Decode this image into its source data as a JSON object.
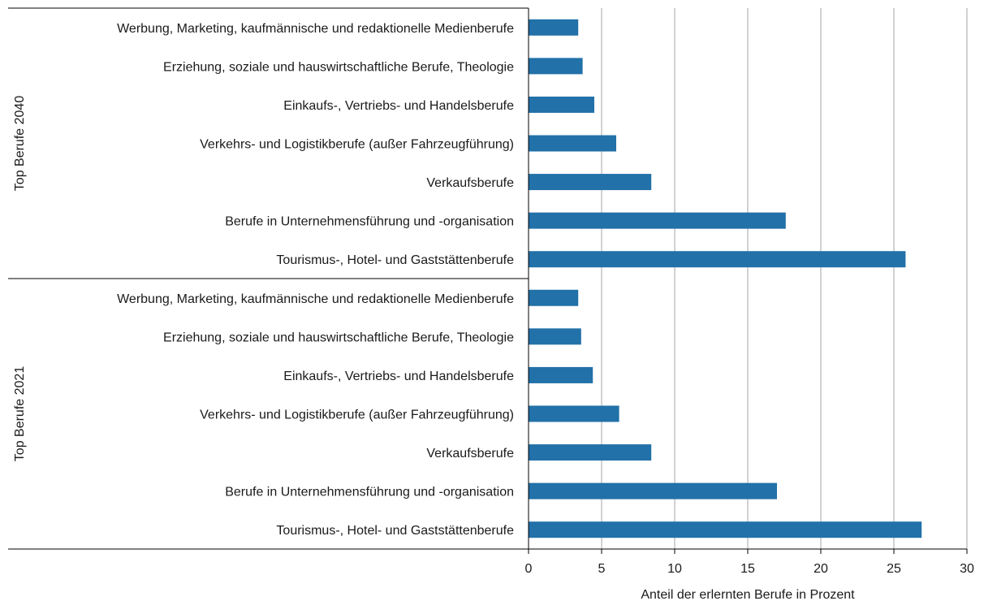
{
  "chart_data": {
    "type": "bar",
    "orientation": "horizontal",
    "groups": [
      {
        "label": "Top Berufe 2040",
        "categories": [
          "Werbung, Marketing, kaufmännische und redaktionelle Medienberufe",
          "Erziehung, soziale und hauswirtschaftliche Berufe, Theologie",
          "Einkaufs-, Vertriebs- und Handelsberufe",
          "Verkehrs- und Logistikberufe (außer Fahrzeugführung)",
          "Verkaufsberufe",
          "Berufe in Unternehmensführung und -organisation",
          "Tourismus-, Hotel- und Gaststättenberufe"
        ],
        "values": [
          3.4,
          3.7,
          4.5,
          6.0,
          8.4,
          17.6,
          25.8
        ]
      },
      {
        "label": "Top Berufe 2021",
        "categories": [
          "Werbung, Marketing, kaufmännische und redaktionelle Medienberufe",
          "Erziehung, soziale und hauswirtschaftliche Berufe, Theologie",
          "Einkaufs-, Vertriebs- und Handelsberufe",
          "Verkehrs- und Logistikberufe (außer Fahrzeugführung)",
          "Verkaufsberufe",
          "Berufe in Unternehmensführung und -organisation",
          "Tourismus-, Hotel- und Gaststättenberufe"
        ],
        "values": [
          3.4,
          3.6,
          4.4,
          6.2,
          8.4,
          17.0,
          26.9
        ]
      }
    ],
    "xlabel": "Anteil der erlernten  Berufe in Prozent",
    "xlim": [
      0,
      30
    ],
    "xticks": [
      0,
      5,
      10,
      15,
      20,
      25,
      30
    ],
    "grid": "vertical",
    "bar_color": "#2271a8",
    "legend": "none"
  }
}
